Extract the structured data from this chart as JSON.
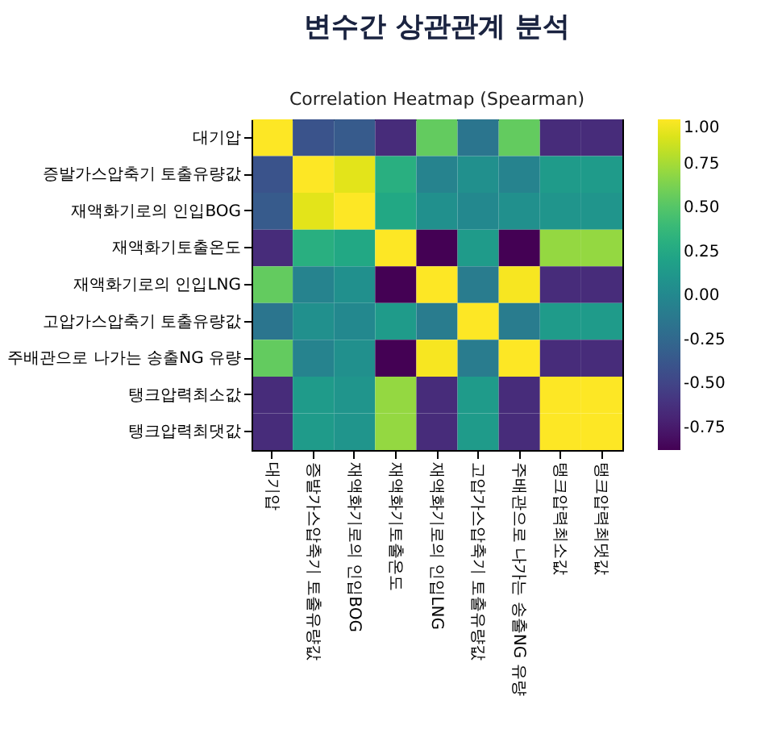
{
  "chart_data": {
    "type": "heatmap",
    "title": "변수간 상관관계 분석",
    "subtitle": "Correlation Heatmap (Spearman)",
    "categories": [
      "대기압",
      "증발가스압축기 토출유량값",
      "재액화기로의 인입BOG",
      "재액화기토출온도",
      "재액화기로의 인입LNG",
      "고압가스압축기 토출유량값",
      "주배관으로 나가는 송출NG 유량",
      "탱크압력최소값",
      "탱크압력최댓값"
    ],
    "y_categories": [
      "대기압",
      "증발가스압축기 토출유량값",
      "재액화기로의 인입BOG",
      "재액화기토출온도",
      "재액화기로의 인입LNG",
      "고압가스압축기 토출유량값",
      "주배관으로 나가는 송출NG 유량",
      "탱크압력최소값",
      "탱크압력최댓값"
    ],
    "cells": [
      [
        1.0,
        -0.4,
        -0.35,
        -0.65,
        0.55,
        -0.15,
        0.55,
        -0.65,
        -0.65
      ],
      [
        -0.4,
        1.0,
        0.92,
        0.3,
        -0.05,
        0.05,
        -0.05,
        0.15,
        0.15
      ],
      [
        -0.35,
        0.92,
        1.0,
        0.25,
        0.05,
        0.0,
        0.05,
        0.1,
        0.1
      ],
      [
        -0.65,
        0.3,
        0.25,
        1.0,
        -0.88,
        0.15,
        -0.88,
        0.7,
        0.7
      ],
      [
        0.55,
        -0.05,
        0.05,
        -0.88,
        1.0,
        -0.1,
        0.98,
        -0.65,
        -0.65
      ],
      [
        -0.15,
        0.05,
        0.0,
        0.15,
        -0.1,
        1.0,
        -0.1,
        0.15,
        0.15
      ],
      [
        0.55,
        -0.05,
        0.05,
        -0.88,
        0.98,
        -0.1,
        1.0,
        -0.65,
        -0.65
      ],
      [
        -0.65,
        0.15,
        0.1,
        0.7,
        -0.65,
        0.15,
        -0.65,
        1.0,
        1.0
      ],
      [
        -0.65,
        0.15,
        0.1,
        0.7,
        -0.65,
        0.15,
        -0.65,
        1.0,
        1.0
      ]
    ],
    "clim": [
      -0.88,
      1.0
    ],
    "cticks": [
      {
        "value": 1.0,
        "label": "1.00"
      },
      {
        "value": 0.75,
        "label": "0.75"
      },
      {
        "value": 0.5,
        "label": "0.50"
      },
      {
        "value": 0.25,
        "label": "0.25"
      },
      {
        "value": 0.0,
        "label": "0.00"
      },
      {
        "value": -0.25,
        "label": "-0.25"
      },
      {
        "value": -0.5,
        "label": "-0.50"
      },
      {
        "value": -0.75,
        "label": "-0.75"
      }
    ]
  }
}
